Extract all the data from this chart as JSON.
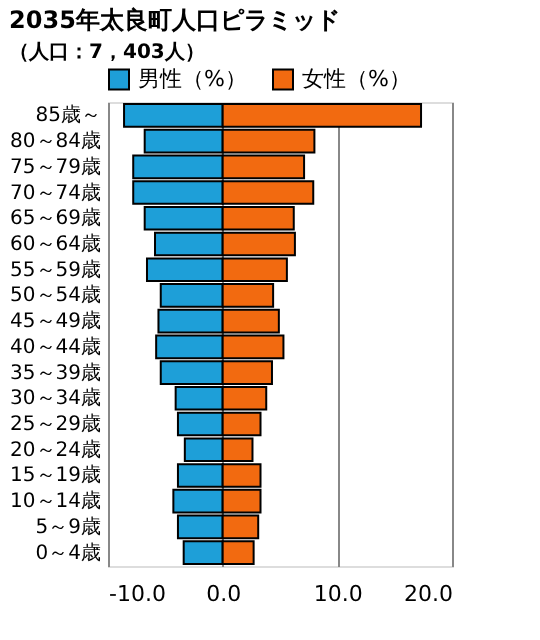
{
  "chart_data": {
    "type": "bar",
    "orientation": "horizontal",
    "title": "2035年太良町人口ピラミッド",
    "subtitle": "（人口：7，403人）",
    "categories": [
      "85歳～",
      "80～84歳",
      "75～79歳",
      "70～74歳",
      "65～69歳",
      "60～64歳",
      "55～59歳",
      "50～54歳",
      "45～49歳",
      "40～44歳",
      "35～39歳",
      "30～34歳",
      "25～29歳",
      "20～24歳",
      "15～19歳",
      "10～14歳",
      "5～9歳",
      "0～4歳"
    ],
    "series": [
      {
        "name": "男性（%）",
        "color": "#1e9fd8",
        "values": [
          -8.6,
          -6.8,
          -7.8,
          -7.8,
          -6.8,
          -5.9,
          -6.6,
          -5.4,
          -5.6,
          -5.8,
          -5.4,
          -4.1,
          -3.9,
          -3.3,
          -3.9,
          -4.3,
          -3.9,
          -3.4
        ]
      },
      {
        "name": "女性（%）",
        "color": "#f26a10",
        "values": [
          17.3,
          8.0,
          7.1,
          7.9,
          6.2,
          6.3,
          5.6,
          4.4,
          4.9,
          5.3,
          4.3,
          3.8,
          3.3,
          2.6,
          3.3,
          3.3,
          3.1,
          2.7
        ]
      }
    ],
    "xlim": [
      -10,
      20
    ],
    "xticks": [
      {
        "value": -10,
        "label": "-10.0"
      },
      {
        "value": 0,
        "label": "0.0"
      },
      {
        "value": 10,
        "label": "10.0"
      },
      {
        "value": 20,
        "label": "20.0"
      }
    ],
    "grid": "x",
    "legend": "top",
    "stacked": true
  }
}
